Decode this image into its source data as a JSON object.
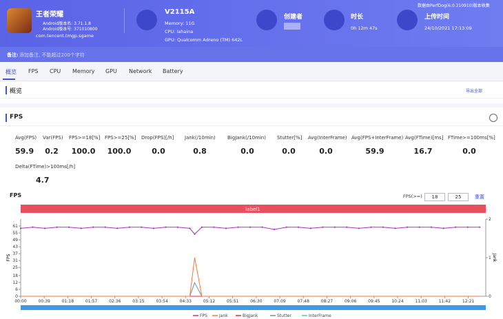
{
  "header": {
    "app_name": "王者荣耀",
    "version_name": "Android版本名: 3.71.1.8",
    "version_code": "Android版本号: 371010800",
    "package": "com.tencent.tmgp.sgame",
    "device": "V2115A",
    "memory": "Memory: 11G",
    "cpu": "CPU: lahaina",
    "gpu": "GPU: Qualcomm Adreno (TM) 642L",
    "creator_label": "创建者",
    "duration_label": "时长",
    "duration": "0h 12m 47s",
    "upload_label": "上传时间",
    "upload_time": "24/10/2021 17:13:09",
    "collector": "数据由PerfDog(6.0.210910)版本收集"
  },
  "note": {
    "label": "备注:",
    "text": "添加备注, 不能超过200个字符"
  },
  "tabs": [
    "概览",
    "FPS",
    "CPU",
    "Memory",
    "GPU",
    "Network",
    "Battery"
  ],
  "overview": {
    "title": "概览",
    "export": "导出全部"
  },
  "fps_section": {
    "title": "FPS",
    "metrics": [
      {
        "label": "Avg(FPS)",
        "value": "59.9"
      },
      {
        "label": "Var(FPS)",
        "value": "0.2"
      },
      {
        "label": "FPS>=18[%]",
        "value": "100.0"
      },
      {
        "label": "FPS>=25[%]",
        "value": "100.0"
      },
      {
        "label": "Drop(FPS)[/h]",
        "value": "0.0"
      },
      {
        "label": "Jank(/10min)",
        "value": "0.8"
      },
      {
        "label": "BigJank(/10min)",
        "value": "0.0"
      },
      {
        "label": "Stutter[%]",
        "value": "0.0"
      },
      {
        "label": "Avg(InterFrame)",
        "value": "0.0"
      },
      {
        "label": "Avg(FPS+InterFrame)",
        "value": "59.9"
      },
      {
        "label": "Avg(FTime)[ms]",
        "value": "16.7"
      },
      {
        "label": "FTime>=100ms[%]",
        "value": "0.0"
      },
      {
        "label": "Delta(FTime)>100ms[/h]",
        "value": "4.7"
      }
    ]
  },
  "fps_controls": {
    "label": "FPS(>=)",
    "low": "18",
    "high": "25",
    "reset": "重置"
  },
  "chart_data": {
    "type": "line",
    "title": "FPS",
    "band_label": "label1",
    "y_label": "FPS",
    "y2_label": "Jank",
    "x": [
      0,
      20,
      40,
      60,
      80,
      100,
      120,
      140,
      160,
      180,
      200,
      220,
      240,
      260,
      280,
      288,
      300,
      320,
      340,
      360,
      380,
      400,
      420,
      440,
      460,
      480,
      500,
      520,
      540,
      560,
      580,
      600,
      620,
      640,
      660,
      680,
      700,
      720,
      740,
      760
    ],
    "series": [
      {
        "name": "FPS",
        "color": "#b030c0",
        "values": [
          59,
          60,
          59,
          60,
          60,
          59,
          60,
          60,
          59,
          60,
          60,
          59,
          60,
          60,
          59,
          54,
          60,
          60,
          59,
          60,
          60,
          60,
          58,
          60,
          60,
          59,
          60,
          60,
          60,
          59,
          60,
          60,
          59,
          60,
          60,
          60,
          59,
          60,
          60,
          60
        ]
      },
      {
        "name": "Jank",
        "color": "#f07a3a",
        "axis": "y2",
        "values": [
          0,
          0,
          0,
          0,
          0,
          0,
          0,
          0,
          0,
          0,
          0,
          0,
          0,
          0,
          0,
          1,
          0,
          0,
          0,
          0,
          0,
          0,
          0,
          0,
          0,
          0,
          0,
          0,
          0,
          0,
          0,
          0,
          0,
          0,
          0,
          0,
          0,
          0,
          0,
          0
        ]
      },
      {
        "name": "BigJank",
        "color": "#e03030",
        "axis": "y2",
        "values": [
          0,
          0,
          0,
          0,
          0,
          0,
          0,
          0,
          0,
          0,
          0,
          0,
          0,
          0,
          0,
          0,
          0,
          0,
          0,
          0,
          0,
          0,
          0,
          0,
          0,
          0,
          0,
          0,
          0,
          0,
          0,
          0,
          0,
          0,
          0,
          0,
          0,
          0,
          0,
          0
        ]
      },
      {
        "name": "Stutter",
        "color": "#6a8fb8",
        "axis": "y2",
        "values": [
          0,
          0,
          0,
          0,
          0,
          0,
          0,
          0,
          0,
          0,
          0,
          0,
          0,
          0,
          0,
          0.35,
          0,
          0,
          0,
          0,
          0,
          0,
          0,
          0,
          0,
          0,
          0,
          0,
          0,
          0,
          0,
          0,
          0,
          0,
          0,
          0,
          0,
          0,
          0,
          0
        ]
      },
      {
        "name": "InterFrame",
        "color": "#5bc0d8",
        "values": [
          0,
          0,
          0,
          0,
          0,
          0,
          0,
          0,
          0,
          0,
          0,
          0,
          0,
          0,
          0,
          0,
          0,
          0,
          0,
          0,
          0,
          0,
          0,
          0,
          0,
          0,
          0,
          0,
          0,
          0,
          0,
          0,
          0,
          0,
          0,
          0,
          0,
          0,
          0,
          0
        ]
      }
    ],
    "xlim": [
      0,
      770
    ],
    "xticks": [
      {
        "value": 0,
        "label": "00:00"
      },
      {
        "value": 39,
        "label": "00:39"
      },
      {
        "value": 78,
        "label": "01:18"
      },
      {
        "value": 117,
        "label": "01:57"
      },
      {
        "value": 156,
        "label": "02:36"
      },
      {
        "value": 195,
        "label": "03:15"
      },
      {
        "value": 234,
        "label": "03:54"
      },
      {
        "value": 273,
        "label": "04:33"
      },
      {
        "value": 312,
        "label": "05:12"
      },
      {
        "value": 351,
        "label": "05:51"
      },
      {
        "value": 390,
        "label": "06:30"
      },
      {
        "value": 429,
        "label": "07:09"
      },
      {
        "value": 468,
        "label": "07:48"
      },
      {
        "value": 507,
        "label": "08:27"
      },
      {
        "value": 546,
        "label": "09:06"
      },
      {
        "value": 585,
        "label": "09:45"
      },
      {
        "value": 624,
        "label": "10:24"
      },
      {
        "value": 663,
        "label": "11:03"
      },
      {
        "value": 702,
        "label": "11:42"
      },
      {
        "value": 741,
        "label": "12:21"
      }
    ],
    "ylim": [
      0,
      67
    ],
    "yticks": [
      0,
      6,
      12,
      18,
      25,
      31,
      37,
      43,
      49,
      55,
      61
    ],
    "y2lim": [
      0,
      2
    ],
    "y2ticks": [
      0,
      1,
      2
    ]
  }
}
